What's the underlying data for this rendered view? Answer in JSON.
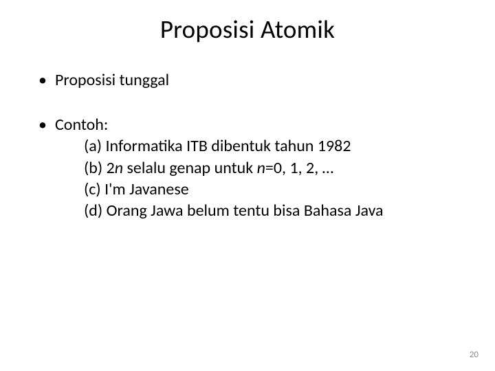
{
  "title": "Proposisi Atomik",
  "bullets": {
    "b1": "Proposisi tunggal",
    "b2": "Contoh:"
  },
  "examples": {
    "a_prefix": "(a) Informatika ITB dibentuk tahun 1982",
    "b_pre": "(b) 2",
    "b_n1": "n",
    "b_mid": " selalu genap untuk ",
    "b_n2": "n",
    "b_post": "=0, 1, 2, …",
    "c": "(c) I'm Javanese",
    "d": "(d) Orang Jawa belum tentu bisa Bahasa Java"
  },
  "page_number": "20",
  "colors": {
    "background": "#ffffff",
    "text": "#000000",
    "page_num": "#8c8c8c"
  },
  "fonts": {
    "title_size": 37,
    "body_size": 24,
    "pagenum_size": 13
  }
}
